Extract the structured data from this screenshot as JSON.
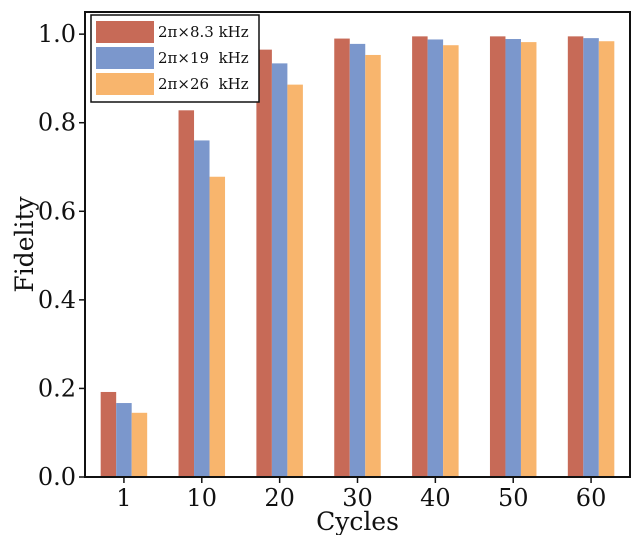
{
  "chart_data": {
    "type": "bar",
    "title": "",
    "xlabel": "Cycles",
    "ylabel": "Fidelity",
    "categories": [
      "1",
      "10",
      "20",
      "30",
      "40",
      "50",
      "60"
    ],
    "ylim": [
      0,
      1.05
    ],
    "yticks": [
      0.0,
      0.2,
      0.4,
      0.6,
      0.8,
      1.0
    ],
    "ytick_labels": [
      "0.0",
      "0.2",
      "0.4",
      "0.6",
      "0.8",
      "1.0"
    ],
    "grid": false,
    "legend_position": "top-left",
    "series": [
      {
        "name": "2π×8.3 kHz",
        "color": "#c76a57",
        "values": [
          0.192,
          0.828,
          0.965,
          0.99,
          0.995,
          0.995,
          0.995
        ]
      },
      {
        "name": "2π×19  kHz",
        "color": "#7b97cc",
        "values": [
          0.167,
          0.76,
          0.934,
          0.978,
          0.988,
          0.989,
          0.991
        ]
      },
      {
        "name": "2π×26  kHz",
        "color": "#f8b56d",
        "values": [
          0.145,
          0.678,
          0.886,
          0.953,
          0.975,
          0.982,
          0.984
        ]
      }
    ]
  }
}
